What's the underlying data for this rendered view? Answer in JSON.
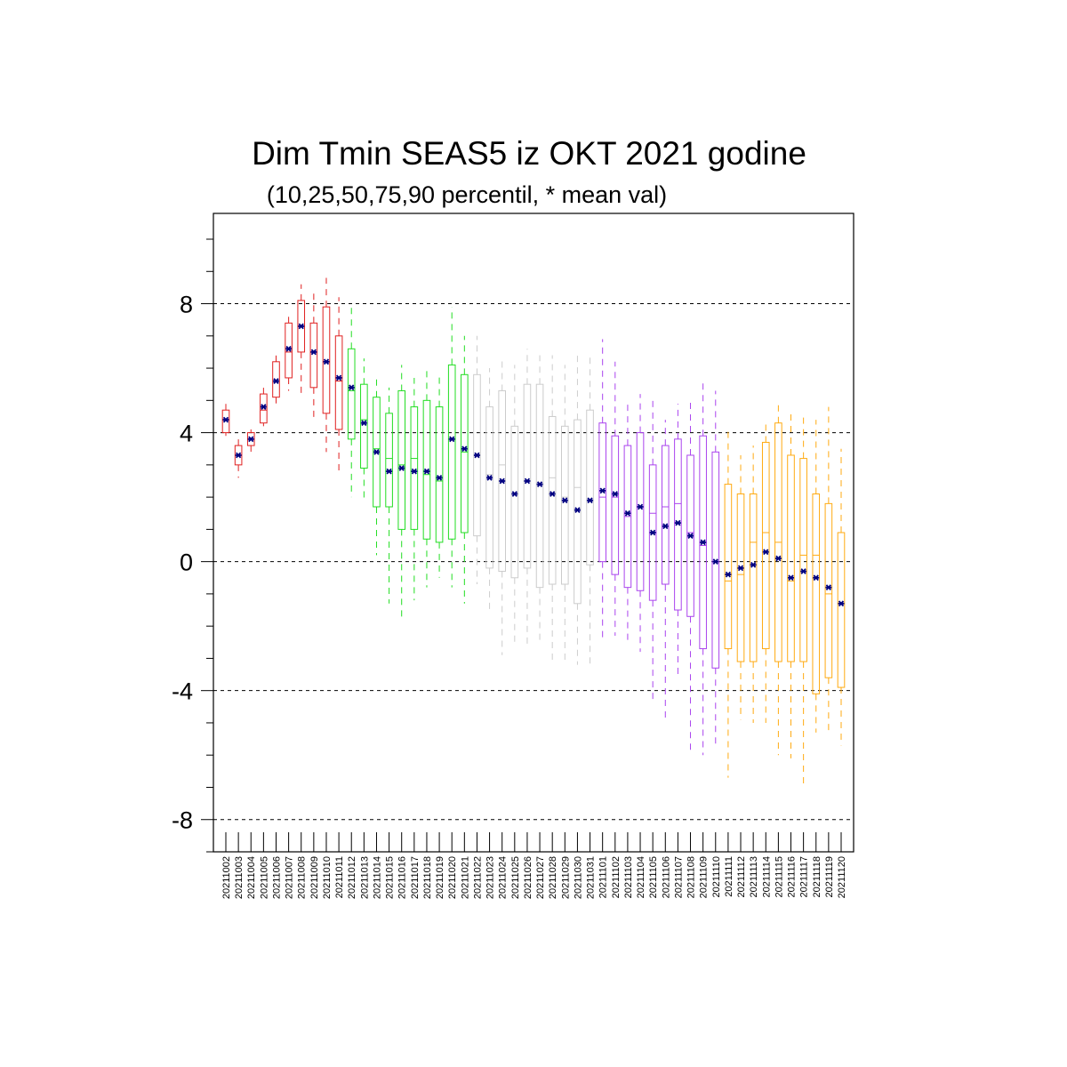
{
  "chart_data": {
    "type": "box",
    "title": "Dim Tmin SEAS5 iz OKT 2021 godine",
    "subtitle": "(10,25,50,75,90 percentil, * mean val)",
    "xlabel": "",
    "ylabel": "",
    "ylim": [
      -9,
      10.8
    ],
    "yticks": [
      -8,
      -4,
      0,
      4,
      8
    ],
    "grid_lines_y": [
      -8,
      -4,
      0,
      4,
      8
    ],
    "mean_marker": "*",
    "mean_color": "#000080",
    "categories": [
      "20211002",
      "20211003",
      "20211004",
      "20211005",
      "20211006",
      "20211007",
      "20211008",
      "20211009",
      "20211010",
      "20211011",
      "20211012",
      "20211013",
      "20211014",
      "20211015",
      "20211016",
      "20211017",
      "20211018",
      "20211019",
      "20211020",
      "20211021",
      "20211022",
      "20211023",
      "20211024",
      "20211025",
      "20211026",
      "20211027",
      "20211028",
      "20211029",
      "20211030",
      "20211031",
      "20211101",
      "20211102",
      "20211103",
      "20211104",
      "20211105",
      "20211106",
      "20211107",
      "20211108",
      "20211109",
      "20211110",
      "20211111",
      "20211112",
      "20211113",
      "20211114",
      "20211115",
      "20211116",
      "20211117",
      "20211118",
      "20211119",
      "20211120"
    ],
    "colors": [
      "#e02020",
      "#e02020",
      "#e02020",
      "#e02020",
      "#e02020",
      "#e02020",
      "#e02020",
      "#e02020",
      "#e02020",
      "#e02020",
      "#22dd22",
      "#22dd22",
      "#22dd22",
      "#22dd22",
      "#22dd22",
      "#22dd22",
      "#22dd22",
      "#22dd22",
      "#22dd22",
      "#22dd22",
      "#cccccc",
      "#cccccc",
      "#cccccc",
      "#cccccc",
      "#cccccc",
      "#cccccc",
      "#cccccc",
      "#cccccc",
      "#cccccc",
      "#cccccc",
      "#aa44ee",
      "#aa44ee",
      "#aa44ee",
      "#aa44ee",
      "#aa44ee",
      "#aa44ee",
      "#aa44ee",
      "#aa44ee",
      "#aa44ee",
      "#aa44ee",
      "#ffaa11",
      "#ffaa11",
      "#ffaa11",
      "#ffaa11",
      "#ffaa11",
      "#ffaa11",
      "#ffaa11",
      "#ffaa11",
      "#ffaa11",
      "#ffaa11"
    ],
    "p10": [
      3.9,
      2.6,
      3.3,
      4.2,
      4.9,
      5.3,
      5.2,
      4.4,
      3.4,
      2.8,
      2.0,
      1.9,
      0.2,
      -1.3,
      -1.8,
      -1.2,
      -0.8,
      -0.5,
      -0.8,
      -1.3,
      -0.7,
      -1.6,
      -2.9,
      -2.6,
      -2.7,
      -2.5,
      -3.2,
      -3.2,
      -3.2,
      -3.2,
      -2.4,
      -2.3,
      -2.5,
      -2.8,
      -4.4,
      -4.9,
      -3.5,
      -6.0,
      -6.0,
      -5.8,
      -6.7,
      -4.9,
      -5.0,
      -5.0,
      -6.0,
      -6.1,
      -7.0,
      -5.3,
      -5.3,
      -5.7
    ],
    "p25": [
      4.0,
      3.0,
      3.6,
      4.3,
      5.1,
      5.7,
      6.5,
      5.4,
      4.6,
      4.1,
      3.8,
      2.9,
      1.7,
      1.7,
      1.0,
      1.0,
      0.7,
      0.6,
      0.7,
      0.9,
      0.8,
      -0.2,
      -0.3,
      -0.5,
      -0.2,
      -0.8,
      -0.7,
      -0.7,
      -1.3,
      -0.1,
      0.0,
      -0.4,
      -0.8,
      -0.9,
      -1.2,
      -0.7,
      -1.5,
      -1.7,
      -2.7,
      -3.3,
      -2.7,
      -3.1,
      -3.1,
      -2.7,
      -3.1,
      -3.1,
      -3.1,
      -4.1,
      -3.6,
      -3.9
    ],
    "median": [
      4.4,
      3.3,
      3.8,
      4.7,
      5.6,
      6.5,
      7.3,
      6.5,
      6.2,
      5.6,
      5.3,
      4.4,
      3.5,
      3.2,
      3.0,
      3.2,
      2.7,
      2.5,
      3.8,
      3.4,
      3.3,
      2.7,
      3.0,
      2.1,
      2.5,
      2.4,
      2.6,
      2.0,
      2.3,
      1.9,
      2.0,
      2.0,
      1.4,
      1.7,
      1.5,
      1.7,
      1.8,
      0.9,
      0.5,
      0.0,
      -0.6,
      -0.4,
      0.6,
      0.9,
      0.6,
      -0.6,
      0.2,
      0.2,
      -1.0,
      -1.3
    ],
    "p75": [
      4.7,
      3.6,
      4.0,
      5.2,
      6.2,
      7.4,
      8.1,
      7.4,
      7.9,
      7.0,
      6.6,
      5.5,
      5.1,
      4.6,
      5.3,
      4.8,
      5.0,
      4.8,
      6.1,
      5.8,
      5.8,
      4.8,
      5.3,
      4.2,
      5.5,
      5.5,
      4.5,
      4.2,
      4.4,
      4.7,
      4.3,
      3.9,
      3.6,
      4.0,
      3.0,
      3.6,
      3.8,
      3.3,
      3.9,
      3.4,
      2.4,
      2.1,
      2.1,
      3.7,
      4.3,
      3.3,
      3.2,
      2.1,
      1.8,
      0.9
    ],
    "p90": [
      4.9,
      3.9,
      4.1,
      5.4,
      6.4,
      7.7,
      8.6,
      8.4,
      8.8,
      8.2,
      7.9,
      6.3,
      5.7,
      5.4,
      6.1,
      5.7,
      6.0,
      5.8,
      7.9,
      7.0,
      7.0,
      6.0,
      6.3,
      6.1,
      6.6,
      6.4,
      6.4,
      6.1,
      6.4,
      6.4,
      6.9,
      6.2,
      5.0,
      5.2,
      5.0,
      4.4,
      4.9,
      5.0,
      5.6,
      5.3,
      4.1,
      3.3,
      3.6,
      4.3,
      5.0,
      4.7,
      4.5,
      4.4,
      4.8,
      3.5
    ],
    "mean": [
      4.4,
      3.3,
      3.8,
      4.8,
      5.6,
      6.6,
      7.3,
      6.5,
      6.2,
      5.7,
      5.4,
      4.3,
      3.4,
      2.8,
      2.9,
      2.8,
      2.8,
      2.6,
      3.8,
      3.5,
      3.3,
      2.6,
      2.5,
      2.1,
      2.5,
      2.4,
      2.1,
      1.9,
      1.6,
      1.9,
      2.2,
      2.1,
      1.5,
      1.7,
      0.9,
      1.1,
      1.2,
      0.8,
      0.6,
      0.0,
      -0.4,
      -0.2,
      -0.1,
      0.3,
      0.1,
      -0.5,
      -0.3,
      -0.5,
      -0.8,
      -1.3
    ]
  }
}
